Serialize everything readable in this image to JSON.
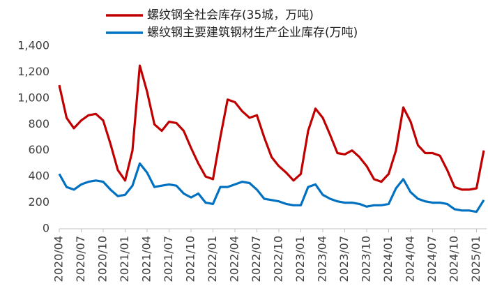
{
  "chart_data": {
    "type": "line",
    "categories": [
      "2020/04",
      null,
      null,
      "2020/07",
      null,
      null,
      "2020/10",
      null,
      null,
      "2021/01",
      null,
      null,
      "2021/04",
      null,
      null,
      "2021/07",
      null,
      null,
      "2021/10",
      null,
      null,
      "2022/01",
      null,
      null,
      "2022/04",
      null,
      null,
      "2022/07",
      null,
      null,
      "2022/10",
      null,
      null,
      "2023/01",
      null,
      null,
      "2023/04",
      null,
      null,
      "2023/07",
      null,
      null,
      "2023/10",
      null,
      null,
      "2024/01",
      null,
      null,
      "2024/04",
      null,
      null,
      "2024/07",
      null,
      null,
      "2024/10",
      null,
      null,
      "2025/01",
      null
    ],
    "series": [
      {
        "name": "螺纹钢全社会库存(35城，万吨)",
        "color": "#c00000",
        "values": [
          1100,
          850,
          770,
          830,
          870,
          880,
          830,
          650,
          450,
          370,
          600,
          1250,
          1050,
          800,
          750,
          820,
          810,
          750,
          620,
          500,
          400,
          380,
          700,
          990,
          970,
          900,
          850,
          870,
          700,
          550,
          480,
          430,
          370,
          420,
          750,
          920,
          850,
          720,
          580,
          570,
          600,
          550,
          480,
          380,
          360,
          420,
          600,
          930,
          820,
          640,
          580,
          580,
          560,
          450,
          320,
          300,
          300,
          310,
          600
        ]
      },
      {
        "name": "螺纹钢主要建筑钢材生产企业库存(万吨)",
        "color": "#0070c0",
        "values": [
          420,
          320,
          300,
          340,
          360,
          370,
          360,
          300,
          250,
          260,
          330,
          500,
          430,
          320,
          330,
          340,
          330,
          270,
          240,
          270,
          200,
          190,
          320,
          320,
          340,
          360,
          350,
          300,
          230,
          220,
          210,
          190,
          180,
          180,
          320,
          340,
          260,
          230,
          210,
          200,
          200,
          190,
          170,
          180,
          180,
          190,
          310,
          380,
          280,
          230,
          210,
          200,
          200,
          190,
          150,
          140,
          140,
          130,
          220
        ]
      }
    ],
    "ylim": [
      0,
      1400
    ],
    "yticks": [
      0,
      200,
      400,
      600,
      800,
      {
        "value": 1000,
        "label": "1,000"
      },
      {
        "value": 1200,
        "label": "1,200"
      },
      {
        "value": 1400,
        "label": "1,400"
      }
    ],
    "grid": false
  }
}
